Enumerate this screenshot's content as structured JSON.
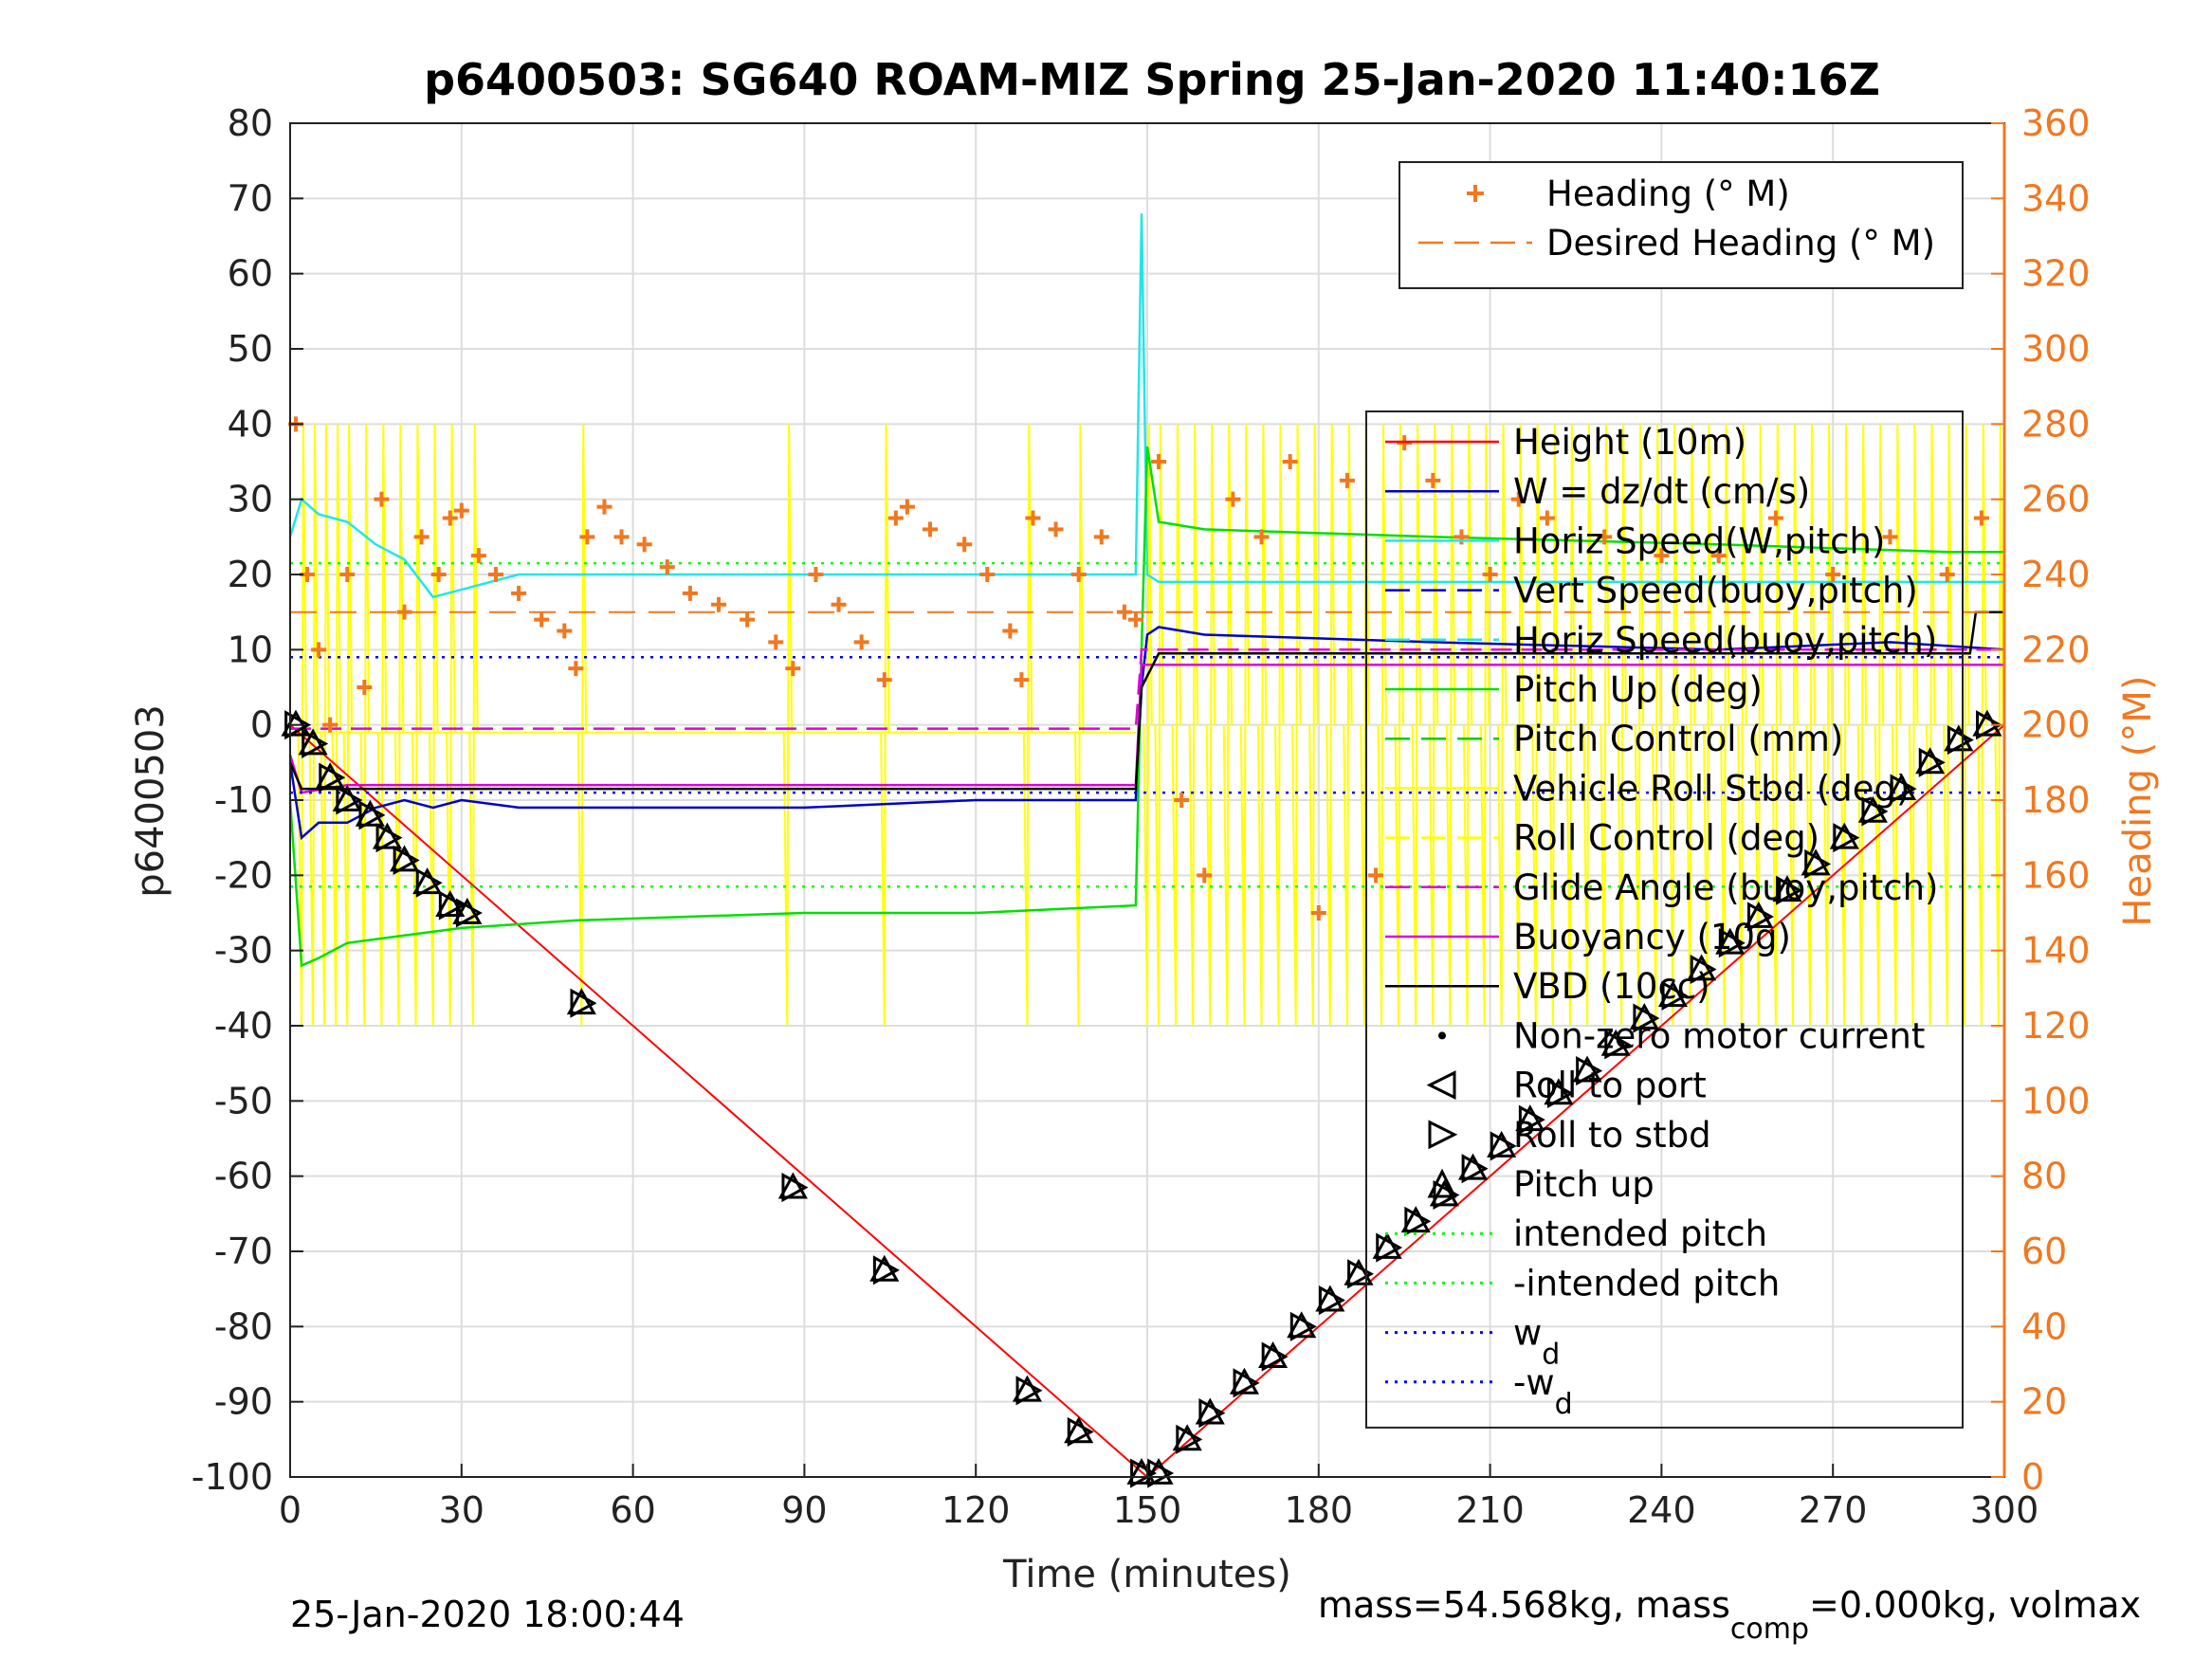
{
  "chart_data": {
    "type": "line",
    "title": "p6400503: SG640 ROAM-MIZ Spring 25-Jan-2020 11:40:16Z",
    "xlabel": "Time (minutes)",
    "ylabel": "p6400503",
    "y2label": "Heading (°M)",
    "xlim": [
      0,
      300
    ],
    "ylim": [
      -100,
      80
    ],
    "y2lim": [
      0,
      360
    ],
    "xticks": [
      0,
      30,
      60,
      90,
      120,
      150,
      180,
      210,
      240,
      270,
      300
    ],
    "yticks": [
      80,
      70,
      60,
      50,
      40,
      30,
      20,
      10,
      0,
      -10,
      -20,
      -30,
      -40,
      -50,
      -60,
      -70,
      -80,
      -90,
      -100
    ],
    "y2ticks": [
      360,
      340,
      320,
      300,
      280,
      260,
      240,
      220,
      200,
      180,
      160,
      140,
      120,
      100,
      80,
      60,
      40,
      20,
      0
    ],
    "grid": true,
    "footer_left": "25-Jan-2020 18:00:44",
    "footer_right": {
      "p1": "mass=54.568kg, mass",
      "sub": "comp",
      "p2": "=0.000kg, volmax"
    },
    "colors": {
      "heading": "#f07820",
      "height": "#ff0000",
      "w": "#0000cc",
      "horiz_speed": "#22e6e6",
      "pitch_up": "#00e000",
      "pitch_control": "#00cc00",
      "roll": "#ffff00",
      "buoyancy": "#dd00dd",
      "vbd": "#000000",
      "wd": "#0000ff",
      "right_axis": "#f07820"
    },
    "legend_top": [
      {
        "label": "Heading (° M)",
        "marker": "plus",
        "color": "#f07820"
      },
      {
        "label": "Desired Heading (° M)",
        "marker": "dash",
        "color": "#f07820"
      }
    ],
    "legend_main": [
      {
        "label": "Height (10m)",
        "marker": "line",
        "color": "#ff0000"
      },
      {
        "label": "W = dz/dt (cm/s)",
        "marker": "line",
        "color": "#0000cc"
      },
      {
        "label": "Horiz Speed(W,pitch)",
        "marker": "line",
        "color": "#22e6e6"
      },
      {
        "label": "Vert Speed(buoy,pitch)",
        "marker": "dash",
        "color": "#0000cc"
      },
      {
        "label": "Horiz Speed(buoy,pitch)",
        "marker": "dash",
        "color": "#22e6e6"
      },
      {
        "label": "Pitch Up (deg)",
        "marker": "line",
        "color": "#00e000"
      },
      {
        "label": "Pitch Control (mm)",
        "marker": "dash",
        "color": "#00cc00"
      },
      {
        "label": "Vehicle Roll Stbd (deg)",
        "marker": "line",
        "color": "#ffff00"
      },
      {
        "label": "Roll Control (deg)",
        "marker": "dash",
        "color": "#ffff00"
      },
      {
        "label": "Glide Angle (buoy,pitch)",
        "marker": "dash",
        "color": "#dd00dd"
      },
      {
        "label": "Buoyancy (10g)",
        "marker": "line",
        "color": "#dd00dd"
      },
      {
        "label": "VBD (10cc)",
        "marker": "line",
        "color": "#000000"
      },
      {
        "label": "Non-zero motor current",
        "marker": "dot",
        "color": "#000000"
      },
      {
        "label": "Roll to port",
        "marker": "tri-left",
        "color": "#000000"
      },
      {
        "label": "Roll to stbd",
        "marker": "tri-right",
        "color": "#000000"
      },
      {
        "label": "Pitch up",
        "marker": "tri-up",
        "color": "#000000"
      },
      {
        "label": "intended pitch",
        "marker": "dots",
        "color": "#00ff00"
      },
      {
        "label": "-intended pitch",
        "marker": "dots",
        "color": "#00ff00"
      },
      {
        "label": "w",
        "sub": "d",
        "marker": "dots",
        "color": "#0000ff"
      },
      {
        "label": "-w",
        "sub": "d",
        "marker": "dots",
        "color": "#0000ff"
      }
    ],
    "series": [
      {
        "name": "Height (10m)",
        "x": [
          0,
          150,
          300
        ],
        "y": [
          0,
          -100,
          0
        ]
      },
      {
        "name": "W = dz/dt (cm/s)",
        "x": [
          0,
          2,
          5,
          10,
          15,
          20,
          25,
          30,
          40,
          60,
          90,
          120,
          148,
          149,
          150,
          152,
          160,
          200,
          250,
          280,
          300
        ],
        "y": [
          -5,
          -15,
          -13,
          -13,
          -11,
          -10,
          -11,
          -10,
          -11,
          -11,
          -11,
          -10,
          -10,
          5,
          12,
          13,
          12,
          11,
          10,
          11,
          10
        ]
      },
      {
        "name": "Horiz Speed(W,pitch)",
        "x": [
          0,
          2,
          5,
          10,
          15,
          20,
          25,
          30,
          40,
          60,
          90,
          120,
          140,
          148,
          149,
          150,
          152,
          160,
          200,
          250,
          300
        ],
        "y": [
          25,
          30,
          28,
          27,
          24,
          22,
          17,
          18,
          20,
          20,
          20,
          20,
          20,
          20,
          68,
          20,
          19,
          19,
          19,
          19,
          19
        ]
      },
      {
        "name": "Pitch Up (deg)",
        "x": [
          0,
          2,
          5,
          10,
          20,
          30,
          50,
          90,
          120,
          148,
          149,
          150,
          152,
          160,
          200,
          250,
          290,
          300
        ],
        "y": [
          -10,
          -32,
          -31,
          -29,
          -28,
          -27,
          -26,
          -25,
          -25,
          -24,
          10,
          37,
          27,
          26,
          25,
          24,
          23,
          23
        ]
      },
      {
        "name": "Buoyancy (10g)",
        "x": [
          0,
          2,
          10,
          30,
          148,
          149,
          150,
          300
        ],
        "y": [
          -4,
          -9,
          -8,
          -8,
          -8,
          8,
          8,
          8
        ]
      },
      {
        "name": "VBD (10cc)",
        "x": [
          0,
          2,
          10,
          30,
          148,
          149,
          152,
          294,
          295,
          300
        ],
        "y": [
          -5,
          -8.5,
          -8.5,
          -8.5,
          -8.5,
          5,
          9.5,
          9.5,
          15,
          15
        ]
      },
      {
        "name": "Glide Angle (buoy,pitch)",
        "x": [
          0,
          148,
          149,
          300
        ],
        "y": [
          -0.5,
          -0.5,
          10,
          10
        ]
      },
      {
        "name": "intended pitch",
        "x": [
          0,
          300
        ],
        "y": [
          21.5,
          21.5
        ]
      },
      {
        "name": "-intended pitch",
        "x": [
          0,
          300
        ],
        "y": [
          -21.5,
          -21.5
        ]
      },
      {
        "name": "wd",
        "x": [
          0,
          300
        ],
        "y": [
          9,
          9
        ]
      },
      {
        "name": "-wd",
        "x": [
          0,
          300
        ],
        "y": [
          -9,
          -9
        ]
      }
    ],
    "desired_heading": {
      "x": [
        0,
        300
      ],
      "y2": [
        230,
        230
      ]
    },
    "heading": {
      "x": [
        1,
        3,
        5,
        7,
        10,
        13,
        16,
        20,
        23,
        26,
        28,
        30,
        33,
        36,
        40,
        44,
        48,
        50,
        52,
        55,
        58,
        62,
        66,
        70,
        75,
        80,
        85,
        88,
        92,
        96,
        100,
        104,
        106,
        108,
        112,
        118,
        122,
        126,
        128,
        130,
        134,
        138,
        142,
        146,
        148,
        152,
        156,
        160,
        165,
        170,
        175,
        180,
        185,
        190,
        195,
        200,
        205,
        210,
        215,
        220,
        230,
        240,
        250,
        260,
        270,
        280,
        290,
        296
      ],
      "y2": [
        280,
        240,
        220,
        200,
        240,
        210,
        260,
        230,
        250,
        240,
        255,
        257,
        245,
        240,
        235,
        228,
        225,
        215,
        250,
        258,
        250,
        248,
        242,
        235,
        232,
        228,
        222,
        215,
        240,
        232,
        222,
        212,
        255,
        258,
        252,
        248,
        240,
        225,
        212,
        255,
        252,
        240,
        250,
        230,
        228,
        270,
        180,
        160,
        260,
        250,
        270,
        150,
        265,
        160,
        275,
        265,
        250,
        240,
        260,
        255,
        250,
        245,
        245,
        255,
        240,
        250,
        240,
        255
      ]
    },
    "pitch_up_markers": [
      {
        "x": 1,
        "y": 0
      },
      {
        "x": 4,
        "y": -2.5
      },
      {
        "x": 7,
        "y": -7
      },
      {
        "x": 10,
        "y": -10
      },
      {
        "x": 14,
        "y": -12
      },
      {
        "x": 17,
        "y": -15
      },
      {
        "x": 20,
        "y": -18
      },
      {
        "x": 24,
        "y": -21
      },
      {
        "x": 28,
        "y": -24
      },
      {
        "x": 31,
        "y": -25
      },
      {
        "x": 51,
        "y": -37
      },
      {
        "x": 88,
        "y": -61.5
      },
      {
        "x": 104,
        "y": -72.5
      },
      {
        "x": 129,
        "y": -88.5
      },
      {
        "x": 138,
        "y": -94
      },
      {
        "x": 149,
        "y": -99.5
      },
      {
        "x": 152,
        "y": -99.5
      },
      {
        "x": 157,
        "y": -95
      },
      {
        "x": 161,
        "y": -91.5
      },
      {
        "x": 167,
        "y": -87.5
      },
      {
        "x": 172,
        "y": -84
      },
      {
        "x": 177,
        "y": -80
      },
      {
        "x": 182,
        "y": -76.5
      },
      {
        "x": 187,
        "y": -73
      },
      {
        "x": 192,
        "y": -69.5
      },
      {
        "x": 197,
        "y": -66
      },
      {
        "x": 202,
        "y": -62.5
      },
      {
        "x": 207,
        "y": -59
      },
      {
        "x": 212,
        "y": -56
      },
      {
        "x": 217,
        "y": -52.5
      },
      {
        "x": 222,
        "y": -49
      },
      {
        "x": 227,
        "y": -46
      },
      {
        "x": 232,
        "y": -42.5
      },
      {
        "x": 237,
        "y": -39
      },
      {
        "x": 242,
        "y": -36
      },
      {
        "x": 247,
        "y": -32.5
      },
      {
        "x": 252,
        "y": -29
      },
      {
        "x": 257,
        "y": -25.5
      },
      {
        "x": 262,
        "y": -22
      },
      {
        "x": 267,
        "y": -18.5
      },
      {
        "x": 272,
        "y": -15
      },
      {
        "x": 277,
        "y": -11.5
      },
      {
        "x": 282,
        "y": -8.5
      },
      {
        "x": 287,
        "y": -5
      },
      {
        "x": 292,
        "y": -2
      },
      {
        "x": 297,
        "y": 0
      }
    ]
  }
}
